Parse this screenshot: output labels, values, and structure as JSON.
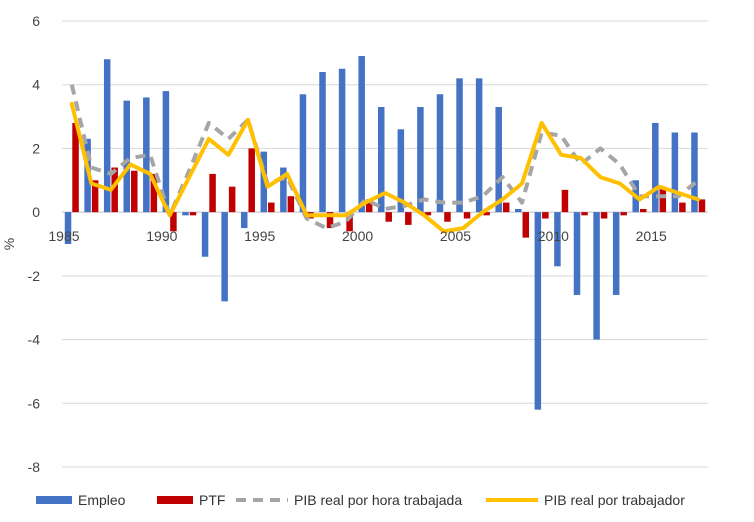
{
  "chart_data": {
    "type": "bar",
    "ylabel": "%",
    "ylim": [
      -8,
      6
    ],
    "yticks": [
      6,
      4,
      2,
      0,
      -2,
      -4,
      -6,
      -8
    ],
    "x_tick_labels": [
      "1985",
      "1990",
      "1995",
      "2000",
      "2005",
      "2010",
      "2015"
    ],
    "x_tick_years": [
      1985,
      1990,
      1995,
      2000,
      2005,
      2010,
      2015
    ],
    "legend_position": "bottom",
    "grid": "horizontal",
    "years": [
      1985,
      1986,
      1987,
      1988,
      1989,
      1990,
      1991,
      1992,
      1993,
      1994,
      1995,
      1996,
      1997,
      1998,
      1999,
      2000,
      2001,
      2002,
      2003,
      2004,
      2005,
      2006,
      2007,
      2008,
      2009,
      2010,
      2011,
      2012,
      2013,
      2014,
      2015,
      2016,
      2017
    ],
    "series": [
      {
        "name": "Empleo",
        "kind": "bar",
        "color": "#4472C4",
        "values": [
          -1.0,
          2.3,
          4.8,
          3.5,
          3.6,
          3.8,
          -0.1,
          -1.4,
          -2.8,
          -0.5,
          1.9,
          1.4,
          3.7,
          4.4,
          4.5,
          4.9,
          3.3,
          2.6,
          3.3,
          3.7,
          4.2,
          4.2,
          3.3,
          0.1,
          -6.2,
          -1.7,
          -2.6,
          -4.0,
          -2.6,
          1.0,
          2.8,
          2.5,
          2.5
        ]
      },
      {
        "name": "PTF",
        "kind": "bar",
        "color": "#C00000",
        "values": [
          2.8,
          1.0,
          1.4,
          1.3,
          1.2,
          -0.6,
          -0.1,
          1.2,
          0.8,
          2.0,
          0.3,
          0.5,
          -0.2,
          -0.5,
          -0.6,
          0.4,
          -0.3,
          -0.4,
          -0.1,
          -0.3,
          -0.2,
          -0.1,
          0.3,
          -0.8,
          -0.2,
          0.7,
          -0.1,
          -0.2,
          -0.1,
          0.1,
          0.8,
          0.3,
          0.4
        ]
      },
      {
        "name": "PIB real por hora trabajada",
        "kind": "line-dashed",
        "color": "#A5A5A5",
        "values": [
          4.0,
          1.4,
          1.2,
          1.7,
          1.8,
          -0.1,
          1.3,
          2.8,
          2.3,
          2.9,
          0.9,
          1.1,
          -0.2,
          -0.5,
          -0.3,
          0.4,
          0.1,
          0.2,
          0.4,
          0.3,
          0.3,
          0.5,
          1.1,
          0.3,
          2.5,
          2.4,
          1.5,
          2.0,
          1.5,
          0.5,
          0.5,
          0.5,
          1.0
        ]
      },
      {
        "name": "PIB real por trabajador",
        "kind": "line",
        "color": "#FFC000",
        "values": [
          3.4,
          0.9,
          0.7,
          1.5,
          1.2,
          -0.1,
          1.1,
          2.3,
          1.8,
          2.9,
          0.8,
          1.2,
          -0.1,
          -0.1,
          -0.1,
          0.3,
          0.6,
          0.3,
          -0.1,
          -0.6,
          -0.5,
          0.0,
          0.4,
          0.9,
          2.8,
          1.8,
          1.7,
          1.1,
          0.9,
          0.4,
          0.8,
          0.6,
          0.4
        ]
      }
    ]
  }
}
